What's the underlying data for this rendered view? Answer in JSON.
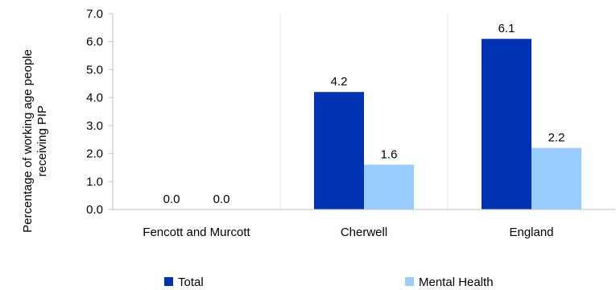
{
  "chart_data": {
    "type": "bar",
    "categories": [
      "Fencott and Murcott",
      "Cherwell",
      "England"
    ],
    "series": [
      {
        "name": "Total",
        "values": [
          0.0,
          4.2,
          6.1
        ],
        "color": "#0033b3"
      },
      {
        "name": "Mental Health",
        "values": [
          0.0,
          1.6,
          2.2
        ],
        "color": "#99ccff"
      }
    ],
    "ylabel": [
      "Percentage of working age people",
      "receiving PIP"
    ],
    "xlabel": "",
    "ylim": [
      0,
      7.0
    ],
    "yticks": [
      0.0,
      1.0,
      2.0,
      3.0,
      4.0,
      5.0,
      6.0,
      7.0
    ],
    "ytick_labels": [
      "0.0",
      "1.0",
      "2.0",
      "3.0",
      "4.0",
      "5.0",
      "6.0",
      "7.0"
    ],
    "data_labels": [
      [
        "0.0",
        "4.2",
        "6.1"
      ],
      [
        "0.0",
        "1.6",
        "2.2"
      ]
    ],
    "grid": "vertical separators between categories",
    "legend_position": "bottom"
  }
}
